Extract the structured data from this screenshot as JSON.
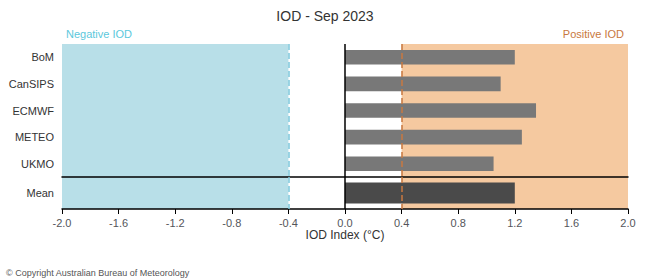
{
  "chart_data": [
    {
      "type": "bar",
      "orientation": "horizontal",
      "title": "IOD - Sep 2023",
      "categories": [
        "BoM",
        "CanSIPS",
        "ECMWF",
        "METEO",
        "UKMO"
      ],
      "values": [
        1.2,
        1.1,
        1.35,
        1.25,
        1.05
      ],
      "color": "#787878",
      "xlim": [
        -2.0,
        2.0
      ],
      "xticks": [],
      "tick_labels": "y",
      "regions": [
        {
          "from": -2.0,
          "to": -0.4,
          "color": "#b8dfe8"
        },
        {
          "from": 0.4,
          "to": 2.0,
          "color": "#f5c9a0"
        }
      ],
      "thresholds": [
        {
          "value": -0.4,
          "color": "#7ec8dc"
        },
        {
          "value": 0.4,
          "color": "#c87840"
        }
      ],
      "annotations": [
        {
          "text": "Negative IOD",
          "color": "#5bc8dc"
        },
        {
          "text": "Positive IOD",
          "color": "#c87840"
        }
      ]
    },
    {
      "type": "bar",
      "orientation": "horizontal",
      "categories": [
        "Mean"
      ],
      "values": [
        1.2
      ],
      "color": "#4a4a4a",
      "xlabel": "IOD Index (°C)",
      "xlim": [
        -2.0,
        2.0
      ],
      "xticks": [
        {
          "value": -2.0,
          "label": "-2.0"
        },
        -1.6,
        -1.2,
        -0.8,
        -0.4,
        {
          "value": 0.0,
          "label": "0.0"
        },
        0.4,
        0.8,
        1.2,
        1.6,
        {
          "value": 2.0,
          "label": "2.0"
        }
      ],
      "regions": [
        {
          "from": -2.0,
          "to": -0.4,
          "color": "#b8dfe8"
        },
        {
          "from": 0.4,
          "to": 2.0,
          "color": "#f5c9a0"
        }
      ],
      "thresholds": [
        {
          "value": -0.4,
          "color": "#7ec8dc"
        },
        {
          "value": 0.4,
          "color": "#c87840"
        }
      ],
      "annotations": [
        {
          "text": "© Copyright Australian Bureau of Meteorology",
          "color": "#555555"
        }
      ]
    }
  ]
}
